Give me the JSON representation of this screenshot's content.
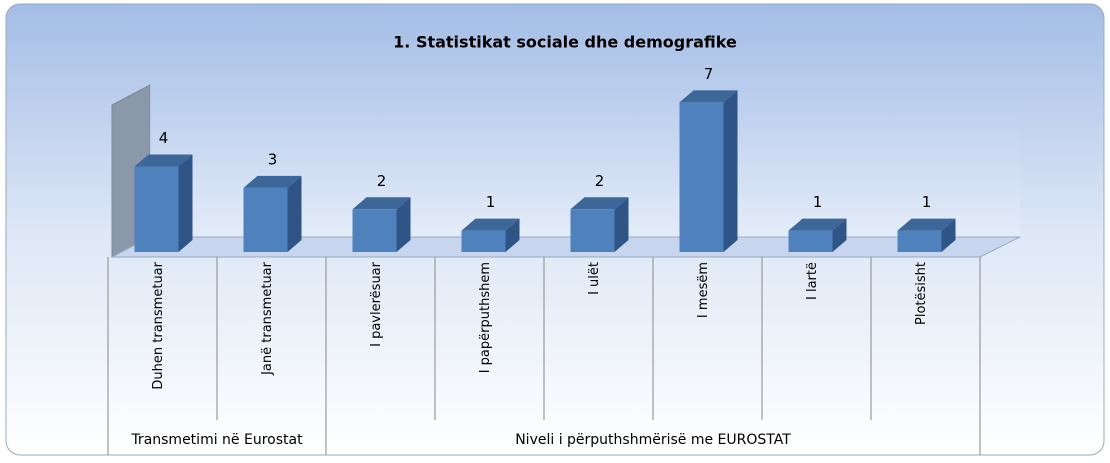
{
  "chart_data": {
    "type": "bar",
    "title": "1. Statistikat sociale dhe demografike",
    "categories": [
      "Duhen transmetuar",
      "Janë transmetuar",
      "I pavlerësuar",
      "I papërputhshem",
      "I ulët",
      "I mesëm",
      "I lartë",
      "Plotësisht"
    ],
    "values": [
      4,
      3,
      2,
      1,
      2,
      7,
      1,
      1
    ],
    "groups": [
      {
        "name": "Transmetimi në Eurostat",
        "count": 2
      },
      {
        "name": "Niveli i përputhshmërisë me EUROSTAT",
        "count": 6
      }
    ],
    "color": "#4f81bd",
    "ylim": [
      0,
      8
    ]
  }
}
